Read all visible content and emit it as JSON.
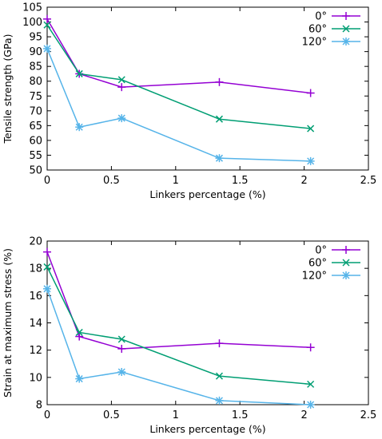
{
  "colors": {
    "0deg": "#9400d3",
    "60deg": "#009e73",
    "120deg": "#56b4e9"
  },
  "chart_data": [
    {
      "type": "line",
      "title": "",
      "xlabel": "Linkers percentage (%)",
      "ylabel": "Tensile strength (GPa)",
      "xlim": [
        0,
        2.5
      ],
      "ylim": [
        50,
        105
      ],
      "xticks": [
        0,
        0.5,
        1,
        1.5,
        2,
        2.5
      ],
      "xtick_labels": [
        "0",
        "0.5",
        "1",
        "1.5",
        "2",
        "2.5"
      ],
      "yticks": [
        50,
        55,
        60,
        65,
        70,
        75,
        80,
        85,
        90,
        95,
        100,
        105
      ],
      "ytick_labels": [
        "50",
        "55",
        "60",
        "65",
        "70",
        "75",
        "80",
        "85",
        "90",
        "95",
        "100",
        "105"
      ],
      "grid": false,
      "legend": "top-right",
      "x": [
        0,
        0.25,
        0.58,
        1.34,
        2.05
      ],
      "series": [
        {
          "name": "0°",
          "marker": "plus",
          "color": "#9400d3",
          "values": [
            101,
            82.5,
            78,
            79.7,
            76
          ]
        },
        {
          "name": "60°",
          "marker": "cross",
          "color": "#009e73",
          "values": [
            99,
            82.5,
            80.5,
            67.2,
            64
          ]
        },
        {
          "name": "120°",
          "marker": "star",
          "color": "#56b4e9",
          "values": [
            91,
            64.5,
            67.5,
            54,
            53
          ]
        }
      ]
    },
    {
      "type": "line",
      "title": "",
      "xlabel": "Linkers percentage (%)",
      "ylabel": "Strain at maximum stress (%)",
      "xlim": [
        0,
        2.5
      ],
      "ylim": [
        8,
        20
      ],
      "xticks": [
        0,
        0.5,
        1,
        1.5,
        2,
        2.5
      ],
      "xtick_labels": [
        "0",
        "0.5",
        "1",
        "1.5",
        "2",
        "2.5"
      ],
      "yticks": [
        8,
        10,
        12,
        14,
        16,
        18,
        20
      ],
      "ytick_labels": [
        "8",
        "10",
        "12",
        "14",
        "16",
        "18",
        "20"
      ],
      "grid": false,
      "legend": "top-right",
      "x": [
        0,
        0.25,
        0.58,
        1.34,
        2.05
      ],
      "series": [
        {
          "name": "0°",
          "marker": "plus",
          "color": "#9400d3",
          "values": [
            19.2,
            13,
            12.1,
            12.5,
            12.2
          ]
        },
        {
          "name": "60°",
          "marker": "cross",
          "color": "#009e73",
          "values": [
            18.1,
            13.3,
            12.8,
            10.1,
            9.5
          ]
        },
        {
          "name": "120°",
          "marker": "star",
          "color": "#56b4e9",
          "values": [
            16.5,
            9.9,
            10.4,
            8.3,
            8
          ]
        }
      ]
    }
  ]
}
